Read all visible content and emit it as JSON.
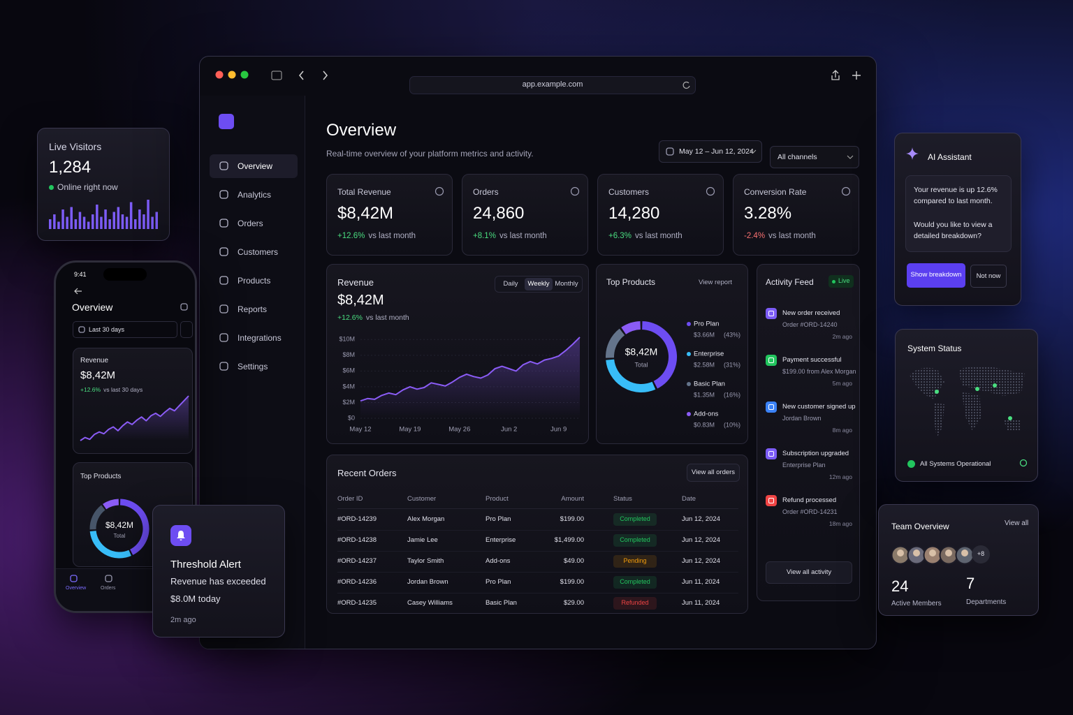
{
  "browser": {
    "url": "app.example.com"
  },
  "sidebar": {
    "active": 0,
    "nav": [
      "Overview",
      "Analytics",
      "Orders",
      "Customers",
      "Products",
      "Reports",
      "Integrations",
      "Settings"
    ]
  },
  "header": {
    "title": "Overview",
    "subtitle": "Real-time overview of your platform metrics and activity.",
    "date_range": "May 12 – Jun 12, 2024",
    "channel": "All channels"
  },
  "kpis": [
    {
      "label": "Total Revenue",
      "value": "$8,42M",
      "change": "+12.6%",
      "change_note": "vs last month",
      "trend": "up"
    },
    {
      "label": "Orders",
      "value": "24,860",
      "change": "+8.1%",
      "change_note": "vs last month",
      "trend": "up"
    },
    {
      "label": "Customers",
      "value": "14,280",
      "change": "+6.3%",
      "change_note": "vs last month",
      "trend": "up"
    },
    {
      "label": "Conversion Rate",
      "value": "3.28%",
      "change": "-2.4%",
      "change_note": "vs last month",
      "trend": "down"
    }
  ],
  "revenue_chart": {
    "title": "Revenue",
    "value": "$8,42M",
    "change": "+12.6%",
    "change_note": "vs last month",
    "tabs": [
      "Daily",
      "Weekly",
      "Monthly"
    ],
    "active_tab": 1,
    "chart_data": {
      "type": "line",
      "color": "#8b5cf6",
      "categories": [
        "May 12",
        null,
        null,
        null,
        null,
        null,
        null,
        "May 19",
        null,
        null,
        null,
        null,
        null,
        null,
        "May 26",
        null,
        null,
        null,
        null,
        null,
        null,
        "Jun 2",
        null,
        null,
        null,
        null,
        null,
        null,
        "Jun 9",
        null,
        null,
        null
      ],
      "values": [
        2.2,
        2.5,
        2.4,
        2.9,
        3.2,
        3.0,
        3.6,
        4.0,
        3.7,
        3.9,
        4.5,
        4.3,
        4.1,
        4.6,
        5.2,
        5.6,
        5.3,
        5.1,
        5.5,
        6.3,
        6.6,
        6.3,
        6.0,
        6.8,
        7.2,
        6.9,
        7.4,
        7.6,
        7.9,
        8.6,
        9.4,
        10.3
      ],
      "ylim": [
        0,
        11
      ],
      "yticks": [
        {
          "value": 0,
          "label": "$0"
        },
        {
          "value": 2,
          "label": "$2M"
        },
        {
          "value": 4,
          "label": "$4M"
        },
        {
          "value": 6,
          "label": "$6M"
        },
        {
          "value": 8,
          "label": "$8M"
        },
        {
          "value": 10,
          "label": "$10M"
        }
      ],
      "grid": true
    }
  },
  "top_products": {
    "title": "Top Products",
    "action": "View report",
    "center_value": "$8,42M",
    "center_label": "Total",
    "chart_data": {
      "type": "donut",
      "categories": [
        "Pro Plan",
        "Enterprise",
        "Basic Plan",
        "Add-ons"
      ],
      "amounts": [
        "$3.66M",
        "$2.58M",
        "$1.35M",
        "$0.83M"
      ],
      "values": [
        43,
        31,
        16,
        10
      ],
      "value_labels": [
        "(43%)",
        "(31%)",
        "(16%)",
        "(10%)"
      ],
      "colors": [
        "#6d4df2",
        "#38bdf8",
        "#64748b",
        "#8b5cf6"
      ]
    }
  },
  "activity": {
    "title": "Activity Feed",
    "badge": "Live",
    "button": "View all activity",
    "items": [
      {
        "title": "New order received",
        "detail": "Order #ORD-14240",
        "time": "2m ago",
        "color": "#7c5cf6"
      },
      {
        "title": "Payment successful",
        "detail": "$199.00 from Alex Morgan",
        "time": "5m ago",
        "color": "#22c55e"
      },
      {
        "title": "New customer signed up",
        "detail": "Jordan Brown",
        "time": "8m ago",
        "color": "#3b82f6"
      },
      {
        "title": "Subscription upgraded",
        "detail": "Enterprise Plan",
        "time": "12m ago",
        "color": "#7c5cf6"
      },
      {
        "title": "Refund processed",
        "detail": "Order #ORD-14231",
        "time": "18m ago",
        "color": "#ef4444"
      }
    ]
  },
  "orders": {
    "title": "Recent Orders",
    "action": "View all orders",
    "columns": [
      "Order ID",
      "Customer",
      "Product",
      "Amount",
      "Status",
      "Date"
    ],
    "rows": [
      [
        "#ORD-14239",
        "Alex Morgan",
        "Pro Plan",
        "$199.00",
        "Completed",
        "Jun 12, 2024"
      ],
      [
        "#ORD-14238",
        "Jamie Lee",
        "Enterprise",
        "$1,499.00",
        "Completed",
        "Jun 12, 2024"
      ],
      [
        "#ORD-14237",
        "Taylor Smith",
        "Add-ons",
        "$49.00",
        "Pending",
        "Jun 12, 2024"
      ],
      [
        "#ORD-14236",
        "Jordan Brown",
        "Pro Plan",
        "$199.00",
        "Completed",
        "Jun 11, 2024"
      ],
      [
        "#ORD-14235",
        "Casey Williams",
        "Basic Plan",
        "$29.00",
        "Refunded",
        "Jun 11, 2024"
      ]
    ],
    "status_colors": [
      "#22c55e",
      "#22c55e",
      "#f59e0b",
      "#22c55e",
      "#ef4444"
    ]
  },
  "live_visitors": {
    "title": "Live Visitors",
    "value": "1,284",
    "status": "Online right now",
    "chart_data": {
      "type": "bar",
      "color": "#7c5cf6",
      "values": [
        4,
        6,
        3,
        8,
        5,
        9,
        4,
        7,
        5,
        3,
        6,
        10,
        5,
        8,
        4,
        7,
        9,
        6,
        5,
        11,
        4,
        8,
        6,
        12,
        5,
        7
      ]
    }
  },
  "phone": {
    "time": "9:41",
    "title": "Overview",
    "range": "Last 30 days",
    "revenue_label": "Revenue",
    "revenue_value": "$8,42M",
    "change": "+12.6%",
    "change_note": "vs last 30 days",
    "revenue_chart": {
      "chart_data": {
        "type": "line",
        "color": "#8b5cf6",
        "values": [
          2,
          2.5,
          2.2,
          3,
          3.4,
          3.1,
          3.8,
          4.2,
          3.6,
          4.4,
          5,
          4.6,
          5.3,
          5.8,
          5.2,
          6,
          6.4,
          5.9,
          6.6,
          7.2,
          6.8,
          7.6,
          8.4,
          9.2
        ]
      }
    },
    "products_title": "Top Products",
    "center_value": "$8,42M",
    "center_label": "Total",
    "donut": {
      "chart_data": {
        "type": "donut",
        "values": [
          43,
          31,
          16,
          10
        ],
        "colors": [
          "#6d4df2",
          "#38bdf8",
          "#475569",
          "#8b5cf6"
        ]
      }
    },
    "tabs": [
      "Overview",
      "Orders"
    ],
    "active_tab": 0
  },
  "alert": {
    "title": "Threshold Alert",
    "lines": [
      "Revenue has exceeded",
      "$8.0M today"
    ],
    "time": "2m ago"
  },
  "assistant": {
    "title": "AI Assistant",
    "messages": [
      "Your revenue is up 12.6% compared to last month.",
      "Would you like to view a detailed breakdown?"
    ],
    "primary": "Show breakdown",
    "secondary": "Not now"
  },
  "system": {
    "title": "System Status",
    "status": "All Systems Operational"
  },
  "team": {
    "title": "Team Overview",
    "action": "View all",
    "more": "+8",
    "stats": [
      {
        "value": "24",
        "label": "Active Members"
      },
      {
        "value": "7",
        "label": "Departments"
      }
    ]
  }
}
